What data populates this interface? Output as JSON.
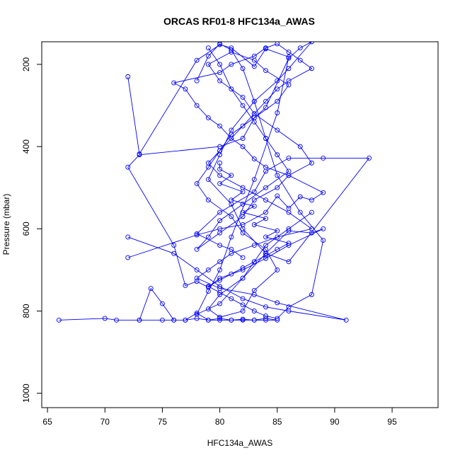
{
  "chart_data": {
    "type": "line",
    "title": "ORCAS RF01-8 HFC134a_AWAS",
    "xlabel": "HFC134a_AWAS",
    "ylabel": "Pressure (mbar)",
    "xlim": [
      64.5,
      99
    ],
    "ylim": [
      1035,
      145
    ],
    "y_reversed": true,
    "x_ticks": [
      65,
      70,
      75,
      80,
      85,
      90,
      95
    ],
    "y_ticks": [
      200,
      400,
      600,
      800,
      1000
    ],
    "grid": false,
    "legend": "none",
    "series_color": "#0000ff",
    "series": [
      {
        "x": [
          66,
          70,
          71,
          73,
          74,
          75,
          76,
          77,
          78,
          79,
          80,
          81,
          82,
          83,
          84,
          85,
          84,
          83,
          82,
          81,
          80,
          79,
          78,
          77,
          76,
          75,
          73
        ],
        "y": [
          822,
          818,
          822,
          822,
          745,
          782,
          822,
          822,
          805,
          822,
          822,
          822,
          822,
          822,
          822,
          822,
          818,
          822,
          820,
          822,
          818,
          822,
          818,
          822,
          822,
          822,
          822
        ]
      },
      {
        "x": [
          72,
          73,
          78,
          80,
          81,
          83,
          84,
          86,
          85,
          83,
          81,
          80,
          79,
          78,
          80,
          82,
          84,
          86,
          88,
          89,
          86,
          84,
          82,
          80,
          79,
          78,
          77,
          76,
          72,
          73,
          80,
          82,
          83,
          84,
          86,
          87,
          88,
          86,
          85,
          83,
          81,
          80,
          79,
          81,
          82,
          84,
          86,
          93,
          89,
          86,
          84,
          83,
          80,
          78,
          80,
          81,
          82
        ],
        "y": [
          230,
          418,
          190,
          152,
          160,
          205,
          162,
          182,
          318,
          480,
          620,
          700,
          752,
          808,
          782,
          720,
          660,
          605,
          610,
          600,
          640,
          672,
          700,
          720,
          742,
          728,
          738,
          640,
          450,
          420,
          400,
          380,
          330,
          305,
          185,
          160,
          145,
          210,
          240,
          290,
          360,
          420,
          480,
          540,
          600,
          660,
          680,
          428,
          428,
          428,
          460,
          510,
          560,
          612,
          640,
          650,
          670
        ]
      },
      {
        "x": [
          72,
          78,
          80,
          82,
          84,
          85,
          86,
          87,
          88,
          89,
          86,
          84,
          83,
          82,
          81,
          80,
          79,
          78,
          77,
          76,
          80,
          81,
          83,
          84,
          85,
          86,
          87,
          88,
          86,
          85,
          84,
          83,
          82,
          81,
          80,
          79,
          80,
          82,
          84,
          86,
          88,
          85,
          83,
          81,
          80,
          79,
          78,
          80,
          83,
          85,
          91,
          86,
          84,
          82,
          80,
          78,
          76,
          72
        ],
        "y": [
          670,
          615,
          600,
          590,
          560,
          520,
          550,
          522,
          530,
          512,
          470,
          450,
          430,
          400,
          380,
          350,
          330,
          300,
          260,
          245,
          220,
          200,
          180,
          160,
          150,
          170,
          190,
          210,
          240,
          260,
          290,
          320,
          350,
          380,
          410,
          440,
          470,
          500,
          530,
          560,
          600,
          620,
          640,
          660,
          680,
          700,
          720,
          745,
          760,
          780,
          822,
          800,
          790,
          770,
          740,
          700,
          660,
          620
        ]
      },
      {
        "x": [
          79,
          80,
          81,
          82,
          83,
          84,
          85,
          86,
          84,
          82,
          80,
          79,
          78,
          80,
          82,
          83,
          85,
          86,
          88,
          87,
          85,
          83,
          82,
          80,
          79,
          81,
          83,
          84,
          86,
          85,
          83,
          81,
          80,
          79,
          78,
          79,
          81,
          82,
          84,
          85,
          83,
          82,
          80,
          79,
          80,
          82,
          83,
          84,
          86,
          88
        ],
        "y": [
          160,
          200,
          260,
          300,
          340,
          380,
          420,
          460,
          500,
          540,
          580,
          620,
          650,
          610,
          570,
          530,
          500,
          470,
          440,
          400,
          360,
          320,
          280,
          240,
          200,
          170,
          190,
          215,
          250,
          290,
          330,
          370,
          410,
          450,
          490,
          530,
          570,
          610,
          650,
          700,
          750,
          800,
          815,
          795,
          760,
          720,
          680,
          640,
          600,
          560
        ]
      },
      {
        "x": [
          80,
          80,
          81,
          80,
          82,
          81,
          83,
          82,
          84,
          83,
          85,
          84,
          86,
          85,
          84,
          83,
          82,
          81,
          80,
          79,
          80,
          81,
          82,
          83,
          84,
          85,
          86,
          88,
          89,
          87,
          85,
          84,
          83,
          82,
          81,
          80,
          79,
          78
        ],
        "y": [
          440,
          455,
          470,
          490,
          510,
          530,
          545,
          560,
          575,
          590,
          605,
          620,
          635,
          650,
          665,
          680,
          695,
          710,
          725,
          740,
          755,
          770,
          785,
          800,
          812,
          818,
          790,
          760,
          628,
          560,
          470,
          380,
          290,
          210,
          165,
          150,
          180,
          240
        ]
      }
    ]
  }
}
